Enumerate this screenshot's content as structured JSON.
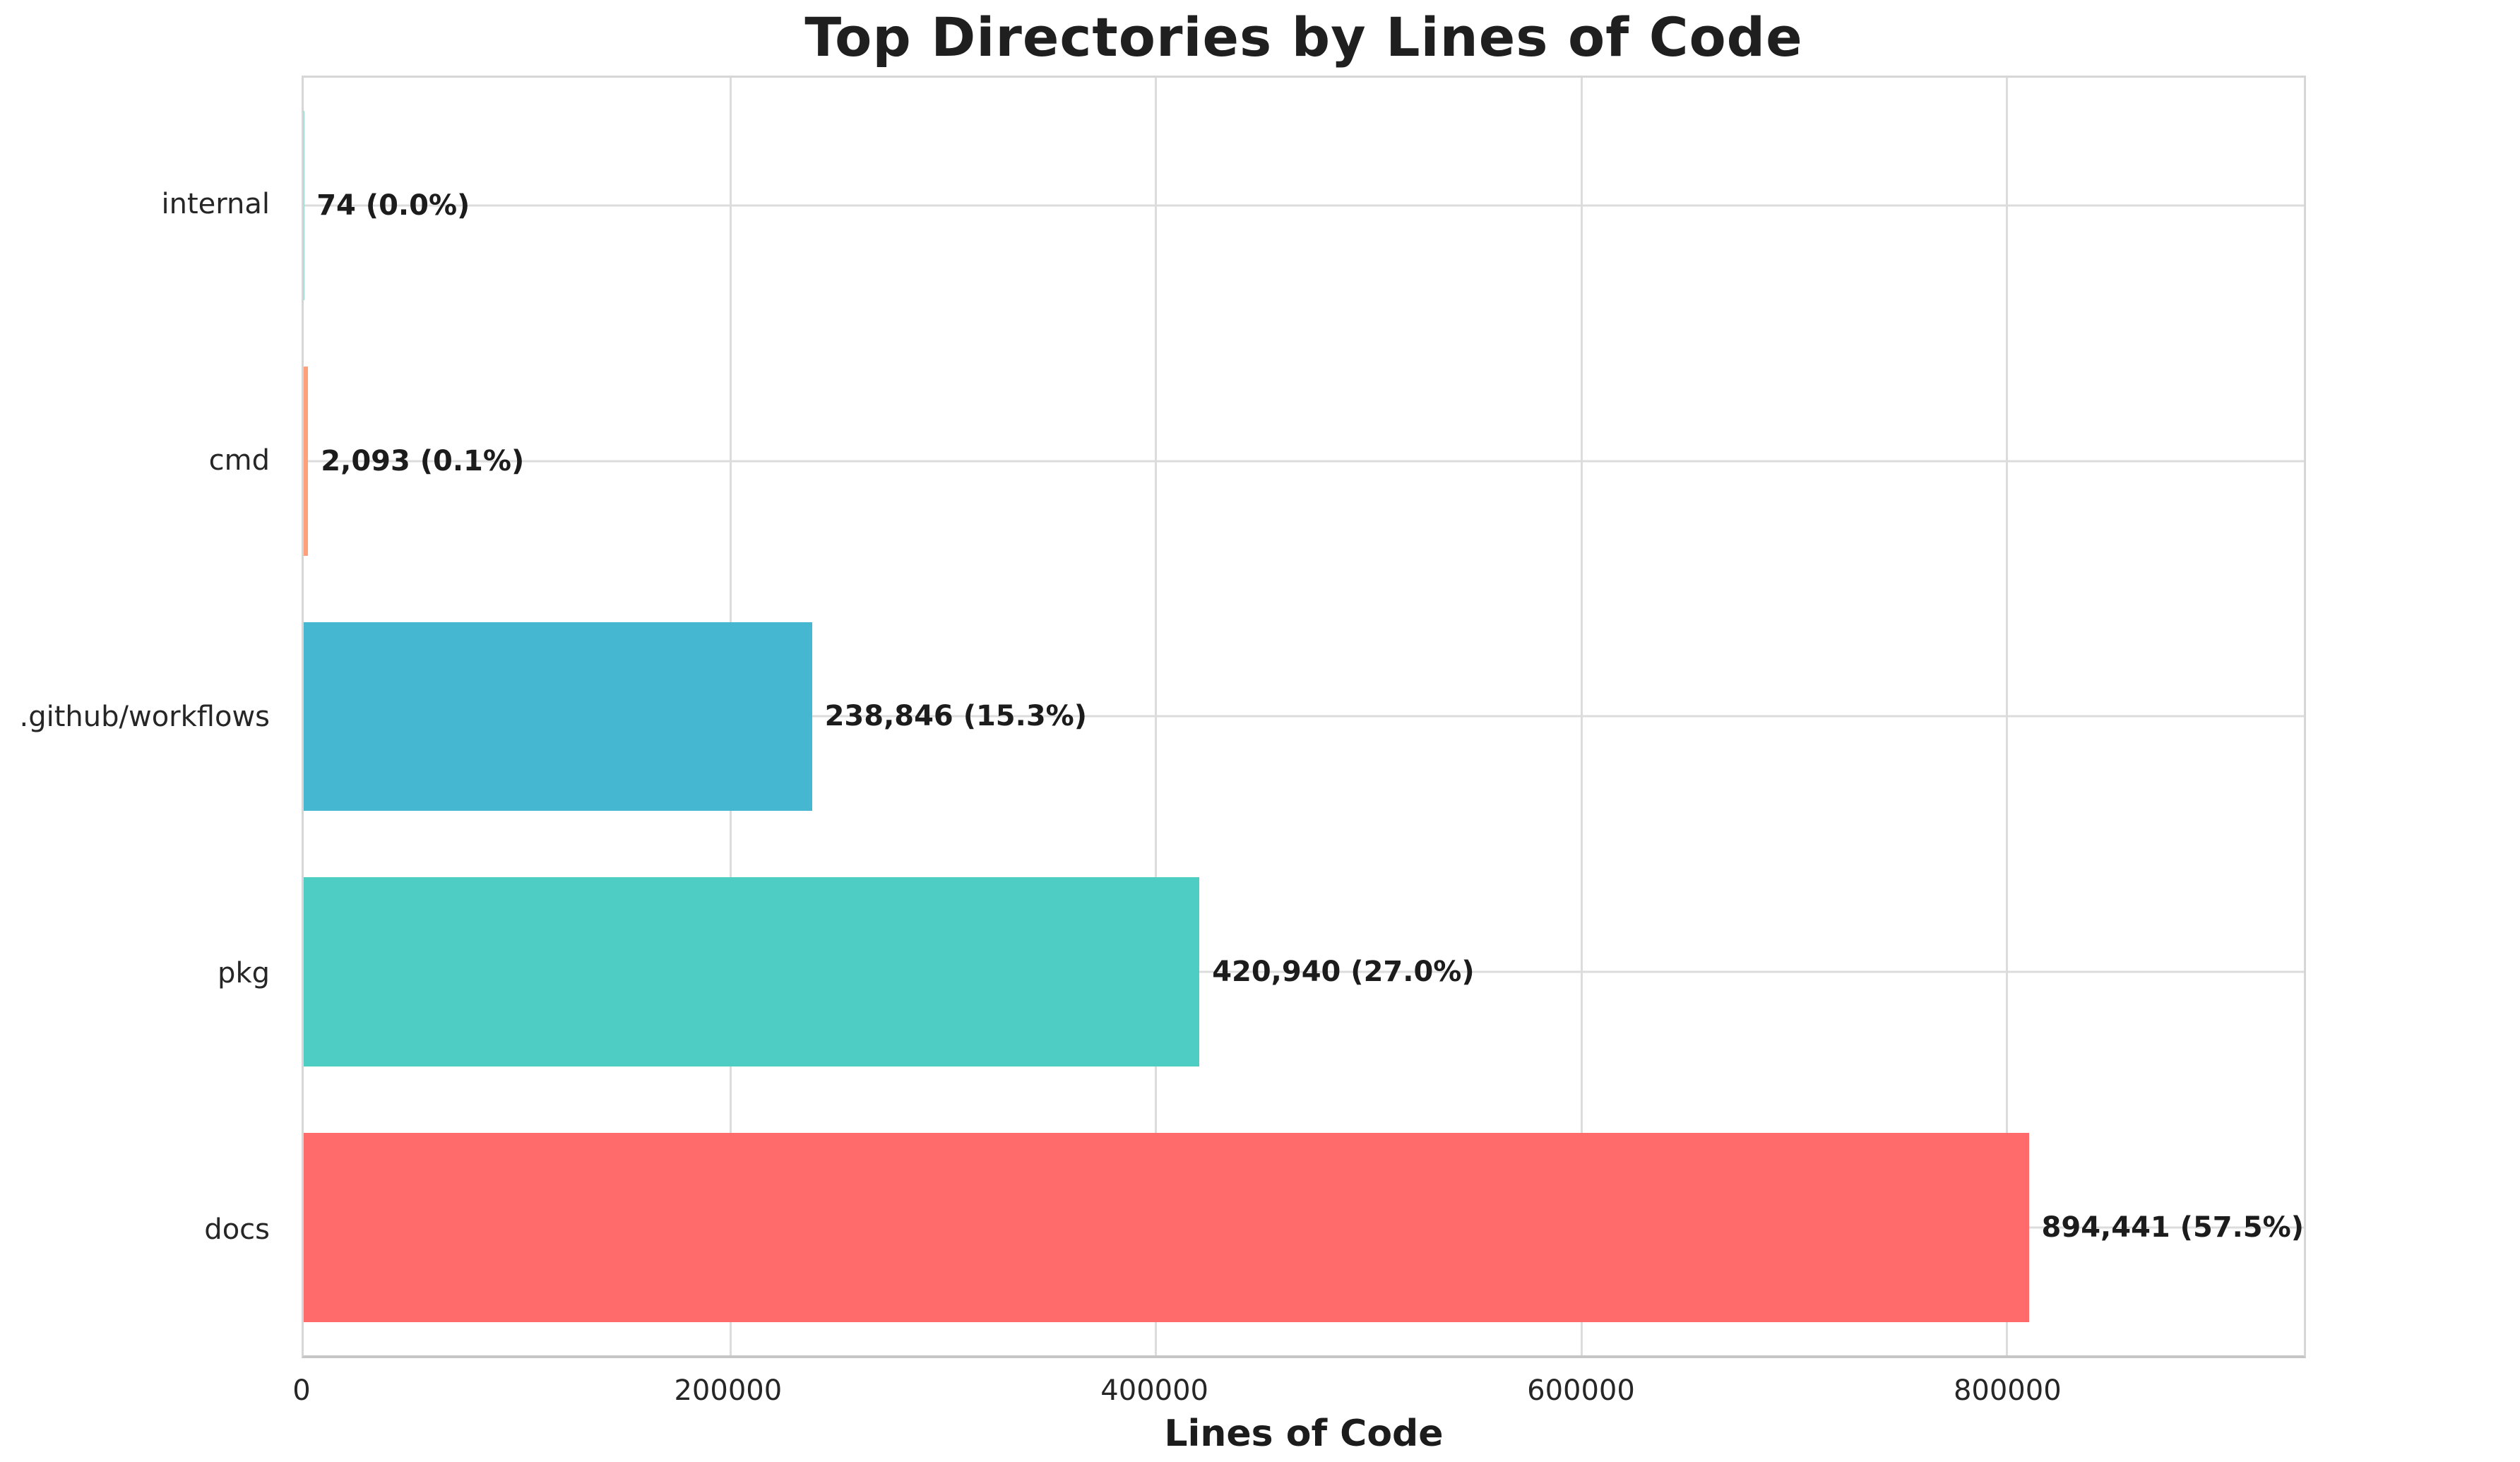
{
  "chart_data": {
    "type": "bar",
    "orientation": "horizontal",
    "title": "Top Directories by Lines of Code",
    "xlabel": "Lines of Code",
    "ylabel": "",
    "categories_top_to_bottom": [
      "internal",
      "cmd",
      ".github/workflows",
      "pkg",
      "docs"
    ],
    "values": [
      74,
      2093,
      238846,
      420940,
      894441
    ],
    "bar_labels": [
      "74 (0.0%)",
      "2,093 (0.1%)",
      "238,846 (15.3%)",
      "420,940 (27.0%)",
      "894,441 (57.5%)"
    ],
    "percent_of_total": [
      0.0,
      0.1,
      15.3,
      27.0,
      57.5
    ],
    "bar_colors": [
      "#98D8C8",
      "#FFA07A",
      "#45B7D1",
      "#4ECDC4",
      "#FF6B6B"
    ],
    "x_ticks": [
      0,
      200000,
      400000,
      600000,
      800000
    ],
    "x_tick_labels": [
      "0",
      "200000",
      "400000",
      "600000",
      "800000"
    ],
    "xlim": [
      0,
      940000
    ],
    "grid": true,
    "legend": false,
    "colors": {
      "grid": "#dcdcdc",
      "spine": "#d6d6d6",
      "text": "#262626",
      "value_label": "#1c1c1c",
      "background": "#ffffff"
    }
  }
}
